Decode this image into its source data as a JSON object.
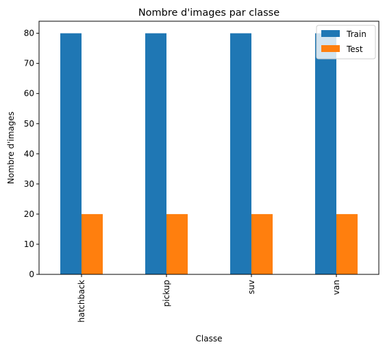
{
  "chart_data": {
    "type": "bar",
    "title": "Nombre d'images par classe",
    "xlabel": "Classe",
    "ylabel": "Nombre d'images",
    "categories": [
      "hatchback",
      "pickup",
      "suv",
      "van"
    ],
    "series": [
      {
        "name": "Train",
        "color": "#1f77b4",
        "values": [
          80,
          80,
          80,
          80
        ]
      },
      {
        "name": "Test",
        "color": "#ff7f0e",
        "values": [
          20,
          20,
          20,
          20
        ]
      }
    ],
    "ylim": [
      0,
      84
    ],
    "yticks": [
      0,
      10,
      20,
      30,
      40,
      50,
      60,
      70,
      80
    ],
    "grid": false,
    "legend_position": "top-right"
  }
}
